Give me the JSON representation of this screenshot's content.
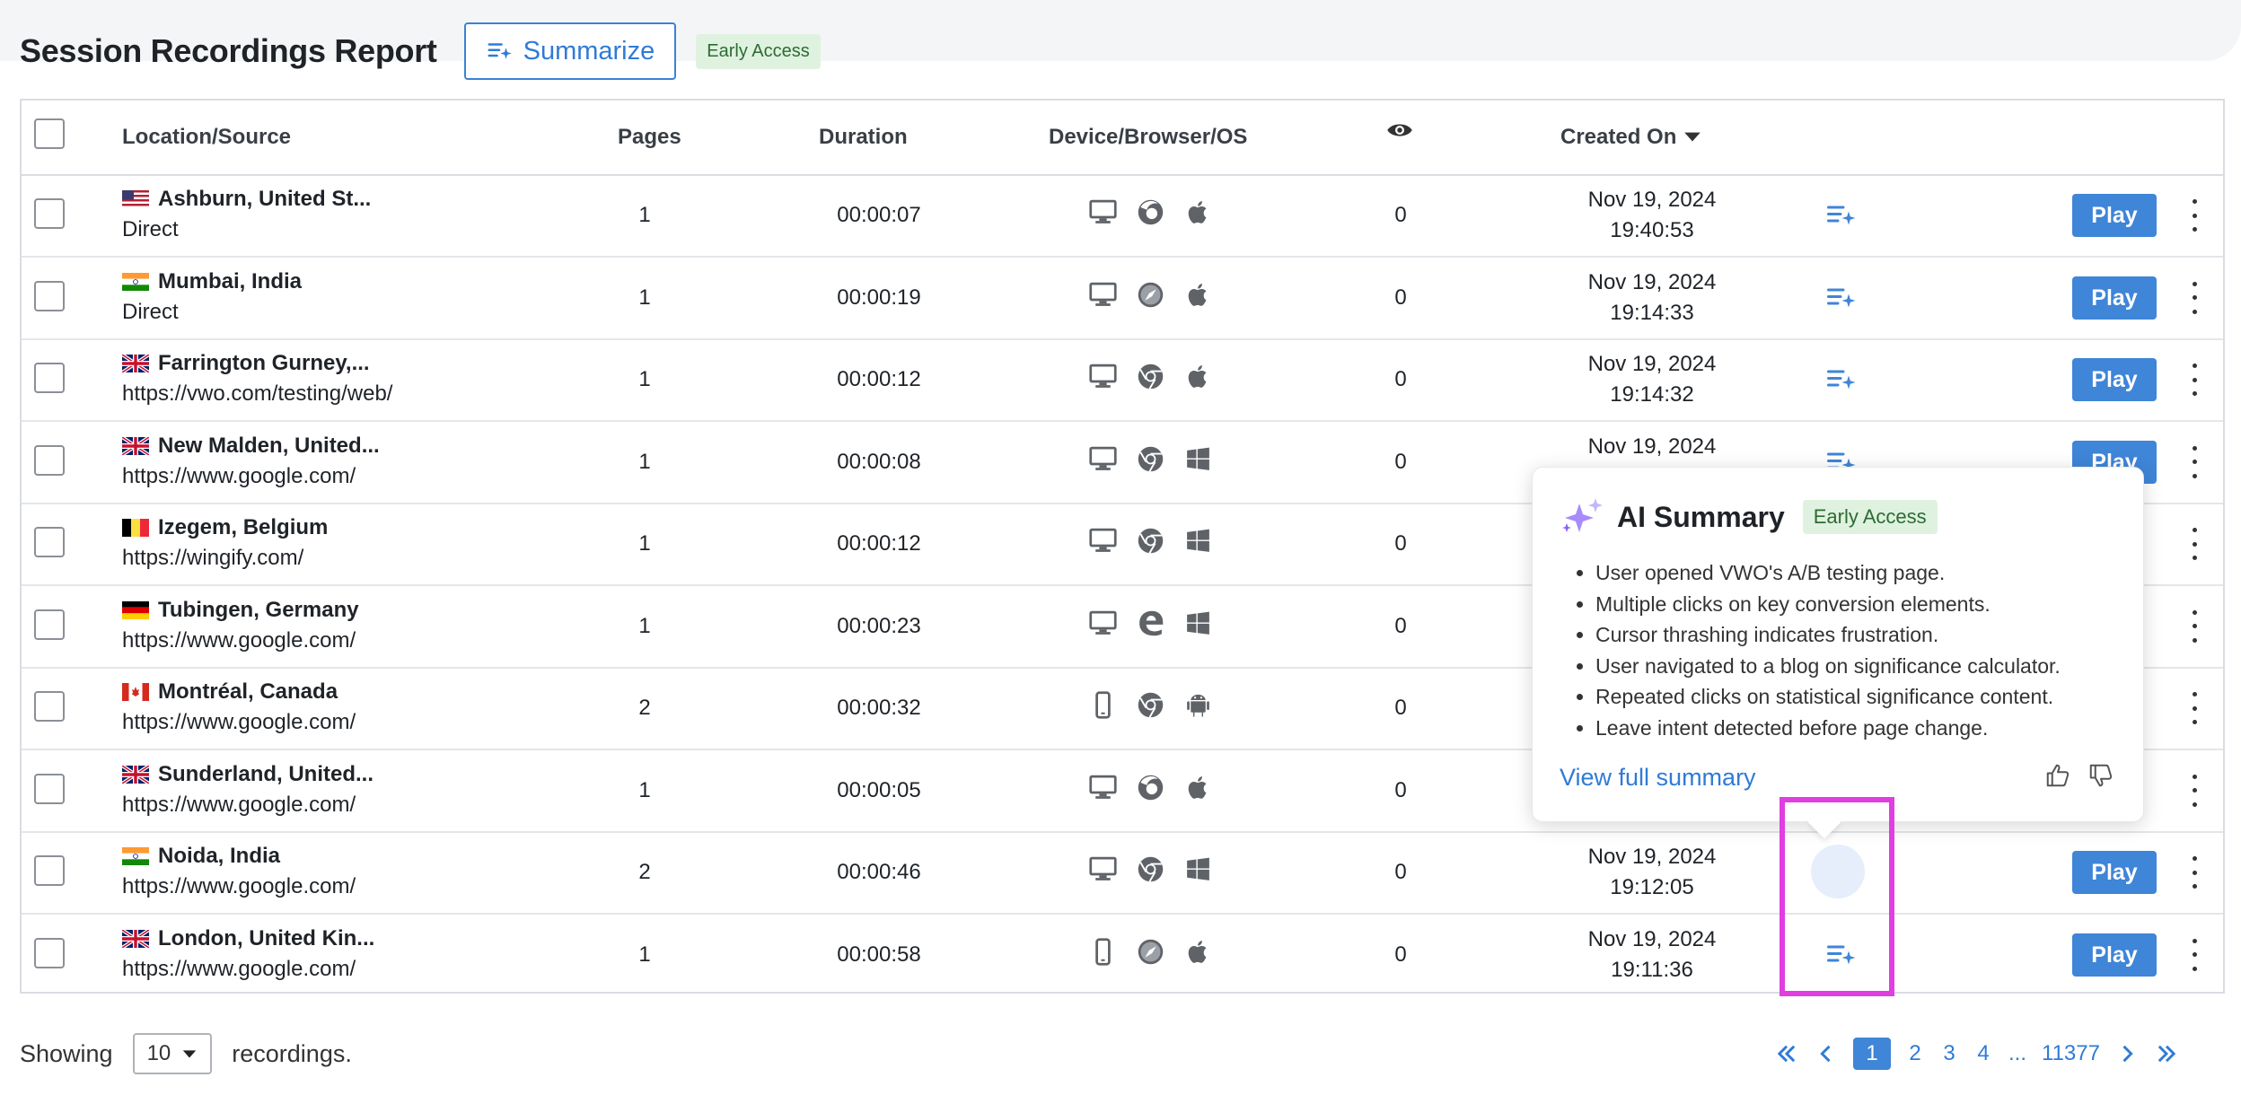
{
  "header": {
    "title": "Session Recordings Report",
    "summarize_label": "Summarize",
    "badge": "Early Access"
  },
  "table": {
    "columns": [
      "Location/Source",
      "Pages",
      "Duration",
      "Device/Browser/OS",
      "Created On"
    ],
    "views_icon": "eye-icon",
    "sort_icon": "caret-down-icon",
    "rows": [
      {
        "flag": "us",
        "location": "Ashburn, United St...",
        "source": "Direct",
        "pages": "1",
        "duration": "00:00:07",
        "device": "desktop",
        "browser": "firefox",
        "os": "apple",
        "views": "0",
        "date": "Nov 19, 2024",
        "time": "19:40:53",
        "action": "Play"
      },
      {
        "flag": "in",
        "location": "Mumbai, India",
        "source": "Direct",
        "pages": "1",
        "duration": "00:00:19",
        "device": "desktop",
        "browser": "safari",
        "os": "apple",
        "views": "0",
        "date": "Nov 19, 2024",
        "time": "19:14:33",
        "action": "Play"
      },
      {
        "flag": "gb",
        "location": "Farrington Gurney,...",
        "source": "https://vwo.com/testing/web/",
        "pages": "1",
        "duration": "00:00:12",
        "device": "desktop",
        "browser": "chrome",
        "os": "apple",
        "views": "0",
        "date": "Nov 19, 2024",
        "time": "19:14:32",
        "action": "Play"
      },
      {
        "flag": "gb",
        "location": "New Malden, United...",
        "source": "https://www.google.com/",
        "pages": "1",
        "duration": "00:00:08",
        "device": "desktop",
        "browser": "chrome",
        "os": "windows",
        "views": "0",
        "date": "Nov 19, 2024",
        "time": "",
        "action": "Play"
      },
      {
        "flag": "be",
        "location": "Izegem, Belgium",
        "source": "https://wingify.com/",
        "pages": "1",
        "duration": "00:00:12",
        "device": "desktop",
        "browser": "chrome",
        "os": "windows",
        "views": "0",
        "date": "",
        "time": "",
        "action": ""
      },
      {
        "flag": "de",
        "location": "Tubingen, Germany",
        "source": "https://www.google.com/",
        "pages": "1",
        "duration": "00:00:23",
        "device": "desktop",
        "browser": "edge",
        "os": "windows",
        "views": "0",
        "date": "",
        "time": "",
        "action": ""
      },
      {
        "flag": "ca",
        "location": "Montréal, Canada",
        "source": "https://www.google.com/",
        "pages": "2",
        "duration": "00:00:32",
        "device": "mobile",
        "browser": "chrome",
        "os": "android",
        "views": "0",
        "date": "",
        "time": "",
        "action": ""
      },
      {
        "flag": "gb",
        "location": "Sunderland, United...",
        "source": "https://www.google.com/",
        "pages": "1",
        "duration": "00:00:05",
        "device": "desktop",
        "browser": "firefox",
        "os": "apple",
        "views": "0",
        "date": "",
        "time": "",
        "action": ""
      },
      {
        "flag": "in",
        "location": "Noida, India",
        "source": "https://www.google.com/",
        "pages": "2",
        "duration": "00:00:46",
        "device": "desktop",
        "browser": "chrome",
        "os": "windows",
        "views": "0",
        "date": "Nov 19, 2024",
        "time": "19:12:05",
        "action": "Play"
      },
      {
        "flag": "gb",
        "location": "London, United Kin...",
        "source": "https://www.google.com/",
        "pages": "1",
        "duration": "00:00:58",
        "device": "mobile",
        "browser": "safari",
        "os": "apple",
        "views": "0",
        "date": "Nov 19, 2024",
        "time": "19:11:36",
        "action": "Play"
      }
    ]
  },
  "popup": {
    "title": "AI Summary",
    "badge": "Early Access",
    "items": [
      "User opened VWO's A/B testing page.",
      "Multiple clicks on key conversion elements.",
      "Cursor thrashing indicates frustration.",
      "User navigated to a blog on significance calculator.",
      "Repeated clicks on statistical significance content.",
      "Leave intent detected before page change."
    ],
    "link": "View full summary"
  },
  "footer": {
    "showing": "Showing",
    "page_size": "10",
    "suffix": "recordings."
  },
  "pagination": {
    "pages": [
      "1",
      "2",
      "3",
      "4"
    ],
    "ellipsis": "...",
    "last": "11377",
    "current": "1"
  },
  "colors": {
    "accent": "#3f85d8",
    "badge_bg": "#dff2df",
    "highlight": "#e03ee0"
  }
}
